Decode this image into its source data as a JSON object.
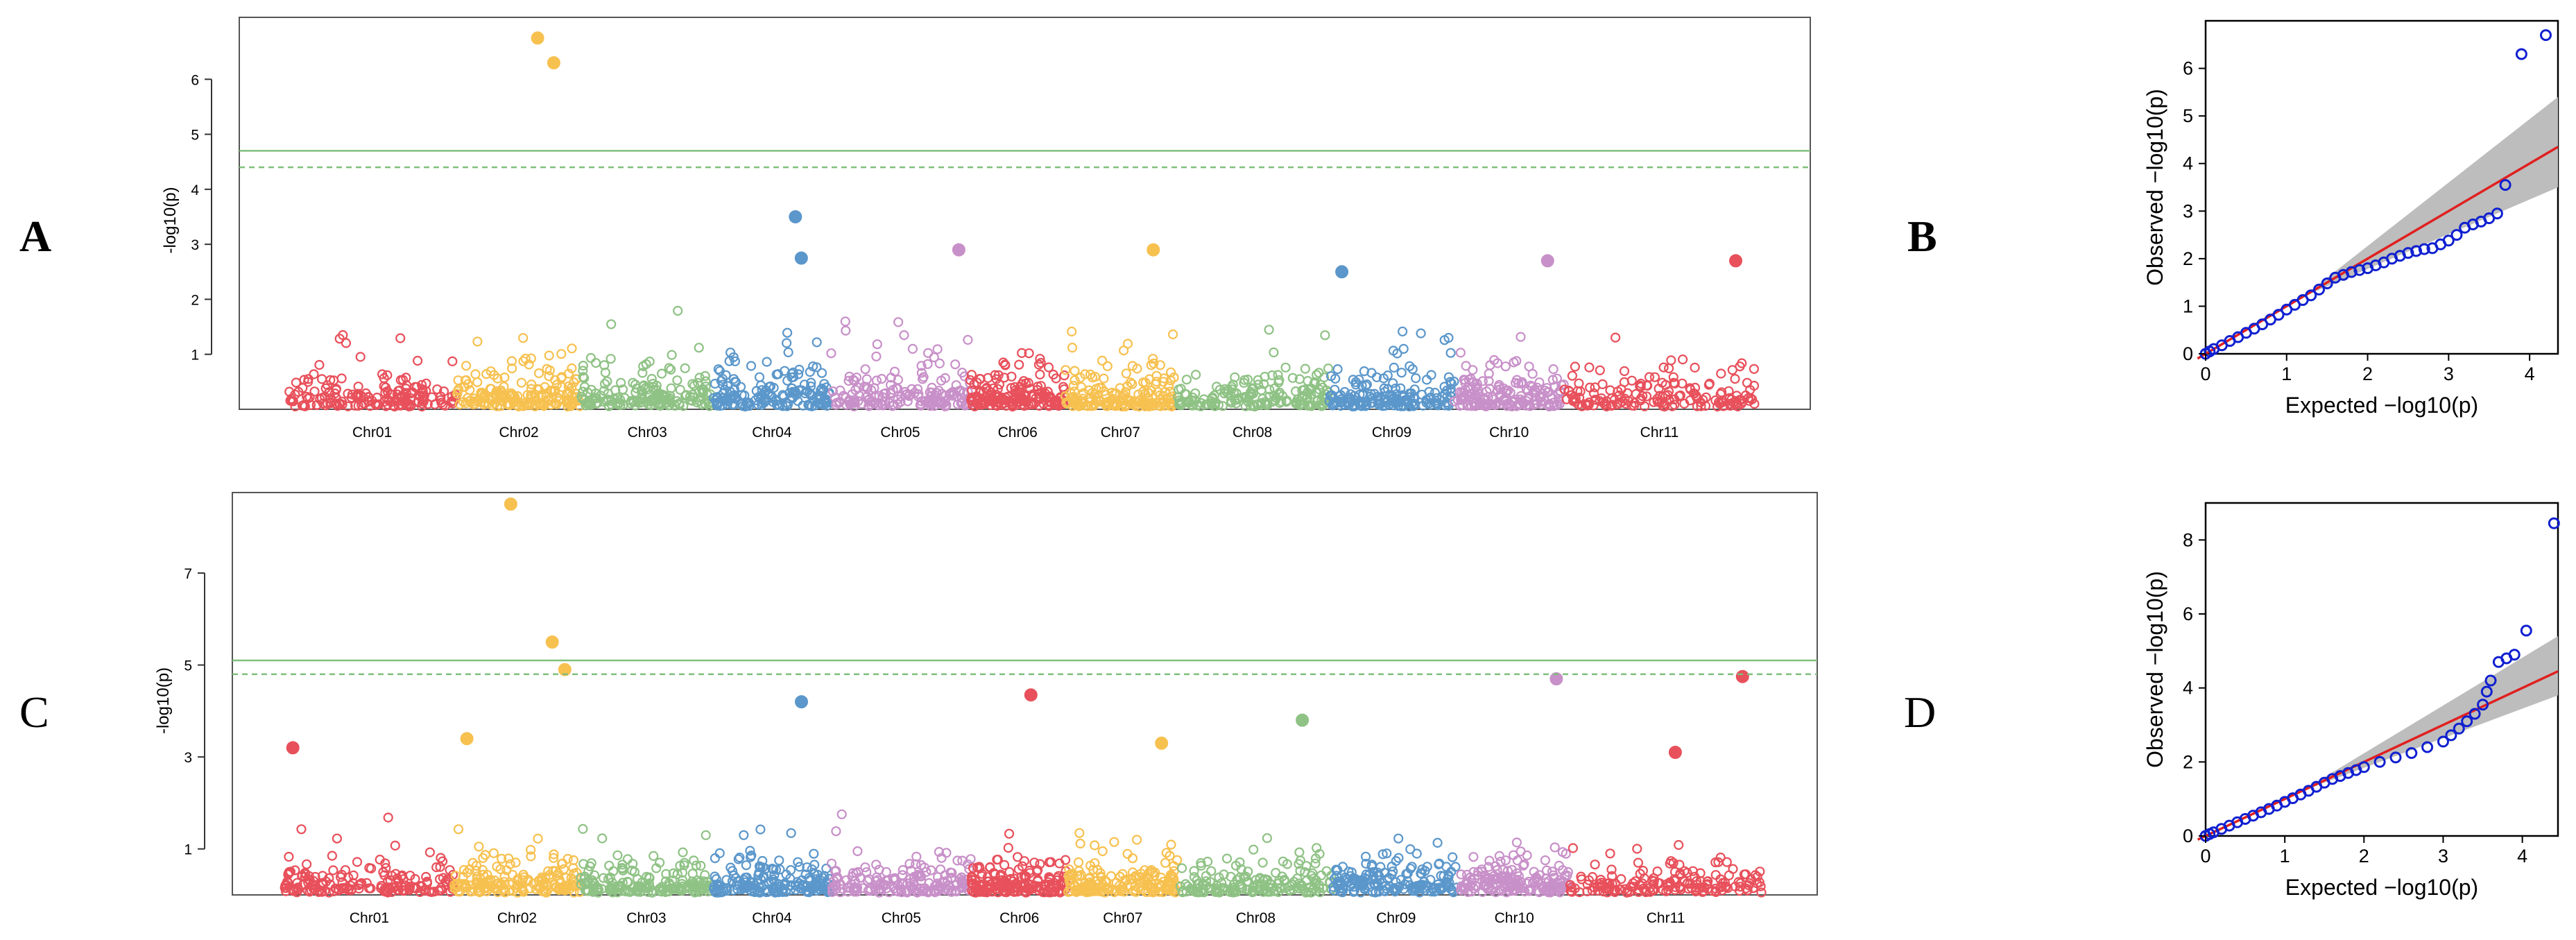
{
  "figure": {
    "panel_letters": [
      "A",
      "B",
      "C",
      "D"
    ]
  },
  "chart_data": [
    {
      "type": "scatter",
      "subtype": "manhattan",
      "panel": "A",
      "ylabel": "-log10(p)",
      "ylim": [
        0,
        7
      ],
      "yticks": [
        1,
        2,
        3,
        4,
        5,
        6
      ],
      "thresholds": [
        {
          "value": 4.7,
          "style": "solid"
        },
        {
          "value": 4.4,
          "style": "dashed"
        }
      ],
      "chromosomes": [
        "Chr01",
        "Chr02",
        "Chr03",
        "Chr04",
        "Chr05",
        "Chr06",
        "Chr07",
        "Chr08",
        "Chr09",
        "Chr10",
        "Chr11"
      ],
      "colors": [
        "#e8505b",
        "#f7c150",
        "#8fc285",
        "#5b97cb",
        "#c890c9",
        "#e8505b",
        "#f7c150",
        "#8fc285",
        "#5b97cb",
        "#c890c9",
        "#e8505b"
      ],
      "significant_points": [
        {
          "chr": "Chr02",
          "pos": 0.65,
          "y": 6.75
        },
        {
          "chr": "Chr02",
          "pos": 0.78,
          "y": 6.3
        }
      ],
      "notable_points": [
        {
          "chr": "Chr04",
          "pos": 0.7,
          "y": 3.5
        },
        {
          "chr": "Chr04",
          "pos": 0.75,
          "y": 2.75
        },
        {
          "chr": "Chr05",
          "pos": 0.92,
          "y": 2.9
        },
        {
          "chr": "Chr07",
          "pos": 0.8,
          "y": 2.9
        },
        {
          "chr": "Chr09",
          "pos": 0.1,
          "y": 2.5
        },
        {
          "chr": "Chr10",
          "pos": 0.85,
          "y": 2.7
        },
        {
          "chr": "Chr11",
          "pos": 0.9,
          "y": 2.7
        }
      ]
    },
    {
      "type": "scatter",
      "subtype": "qq",
      "panel": "B",
      "xlabel": "Expected −log10(p)",
      "ylabel": "Observed −log10(p)",
      "xlim": [
        0,
        4.35
      ],
      "ylim": [
        0,
        7
      ],
      "xticks": [
        0,
        1,
        2,
        3,
        4
      ],
      "yticks": [
        0,
        1,
        2,
        3,
        4,
        5,
        6
      ],
      "points": [
        [
          0,
          0
        ],
        [
          0.05,
          0.05
        ],
        [
          0.1,
          0.1
        ],
        [
          0.2,
          0.18
        ],
        [
          0.3,
          0.27
        ],
        [
          0.4,
          0.35
        ],
        [
          0.5,
          0.44
        ],
        [
          0.6,
          0.53
        ],
        [
          0.7,
          0.62
        ],
        [
          0.8,
          0.72
        ],
        [
          0.9,
          0.82
        ],
        [
          1.0,
          0.93
        ],
        [
          1.1,
          1.03
        ],
        [
          1.2,
          1.13
        ],
        [
          1.3,
          1.23
        ],
        [
          1.4,
          1.35
        ],
        [
          1.5,
          1.48
        ],
        [
          1.6,
          1.6
        ],
        [
          1.7,
          1.66
        ],
        [
          1.8,
          1.72
        ],
        [
          1.9,
          1.76
        ],
        [
          2.0,
          1.8
        ],
        [
          2.1,
          1.86
        ],
        [
          2.2,
          1.92
        ],
        [
          2.3,
          2.0
        ],
        [
          2.4,
          2.06
        ],
        [
          2.5,
          2.12
        ],
        [
          2.6,
          2.16
        ],
        [
          2.7,
          2.2
        ],
        [
          2.8,
          2.22
        ],
        [
          2.9,
          2.3
        ],
        [
          3.0,
          2.38
        ],
        [
          3.1,
          2.5
        ],
        [
          3.2,
          2.65
        ],
        [
          3.3,
          2.72
        ],
        [
          3.4,
          2.78
        ],
        [
          3.5,
          2.85
        ],
        [
          3.6,
          2.95
        ],
        [
          3.7,
          3.55
        ],
        [
          3.9,
          6.3
        ],
        [
          4.2,
          6.7
        ]
      ],
      "ci_upper_end": 5.4,
      "ci_lower_end": 3.5
    },
    {
      "type": "scatter",
      "subtype": "manhattan",
      "panel": "C",
      "ylabel": "-log10(p)",
      "ylim": [
        0,
        8.6
      ],
      "yticks": [
        1,
        3,
        5,
        7
      ],
      "thresholds": [
        {
          "value": 5.1,
          "style": "solid"
        },
        {
          "value": 4.8,
          "style": "dashed"
        }
      ],
      "chromosomes": [
        "Chr01",
        "Chr02",
        "Chr03",
        "Chr04",
        "Chr05",
        "Chr06",
        "Chr07",
        "Chr08",
        "Chr09",
        "Chr10",
        "Chr11"
      ],
      "colors": [
        "#e8505b",
        "#f7c150",
        "#8fc285",
        "#5b97cb",
        "#c890c9",
        "#e8505b",
        "#f7c150",
        "#8fc285",
        "#5b97cb",
        "#c890c9",
        "#e8505b"
      ],
      "significant_points": [
        {
          "chr": "Chr02",
          "pos": 0.45,
          "y": 8.5
        },
        {
          "chr": "Chr02",
          "pos": 0.78,
          "y": 5.5
        },
        {
          "chr": "Chr02",
          "pos": 0.88,
          "y": 4.9
        }
      ],
      "notable_points": [
        {
          "chr": "Chr01",
          "pos": 0.05,
          "y": 3.2
        },
        {
          "chr": "Chr02",
          "pos": 0.1,
          "y": 3.4
        },
        {
          "chr": "Chr04",
          "pos": 0.75,
          "y": 4.2
        },
        {
          "chr": "Chr06",
          "pos": 0.62,
          "y": 4.35
        },
        {
          "chr": "Chr07",
          "pos": 0.85,
          "y": 3.3
        },
        {
          "chr": "Chr08",
          "pos": 0.8,
          "y": 3.8
        },
        {
          "chr": "Chr10",
          "pos": 0.88,
          "y": 4.7
        },
        {
          "chr": "Chr11",
          "pos": 0.9,
          "y": 4.75
        },
        {
          "chr": "Chr11",
          "pos": 0.55,
          "y": 3.1
        }
      ]
    },
    {
      "type": "scatter",
      "subtype": "qq",
      "panel": "D",
      "xlabel": "Expected −log10(p)",
      "ylabel": "Observed −log10(p)",
      "xlim": [
        0,
        4.45
      ],
      "ylim": [
        0,
        9
      ],
      "xticks": [
        0,
        1,
        2,
        3,
        4
      ],
      "yticks": [
        0,
        2,
        4,
        6,
        8
      ],
      "points": [
        [
          0,
          0
        ],
        [
          0.05,
          0.05
        ],
        [
          0.1,
          0.1
        ],
        [
          0.2,
          0.19
        ],
        [
          0.3,
          0.28
        ],
        [
          0.4,
          0.37
        ],
        [
          0.5,
          0.46
        ],
        [
          0.6,
          0.55
        ],
        [
          0.7,
          0.64
        ],
        [
          0.8,
          0.73
        ],
        [
          0.9,
          0.82
        ],
        [
          1.0,
          0.92
        ],
        [
          1.1,
          1.02
        ],
        [
          1.2,
          1.12
        ],
        [
          1.3,
          1.22
        ],
        [
          1.4,
          1.33
        ],
        [
          1.5,
          1.44
        ],
        [
          1.6,
          1.54
        ],
        [
          1.7,
          1.62
        ],
        [
          1.8,
          1.7
        ],
        [
          1.9,
          1.78
        ],
        [
          2.0,
          1.86
        ],
        [
          2.2,
          2.0
        ],
        [
          2.4,
          2.12
        ],
        [
          2.6,
          2.24
        ],
        [
          2.8,
          2.4
        ],
        [
          3.0,
          2.55
        ],
        [
          3.1,
          2.72
        ],
        [
          3.2,
          2.9
        ],
        [
          3.3,
          3.1
        ],
        [
          3.4,
          3.3
        ],
        [
          3.5,
          3.55
        ],
        [
          3.55,
          3.9
        ],
        [
          3.6,
          4.2
        ],
        [
          3.7,
          4.7
        ],
        [
          3.8,
          4.8
        ],
        [
          3.9,
          4.9
        ],
        [
          4.05,
          5.55
        ],
        [
          4.4,
          8.45
        ]
      ],
      "ci_upper_end": 5.4,
      "ci_lower_end": 3.8
    }
  ]
}
